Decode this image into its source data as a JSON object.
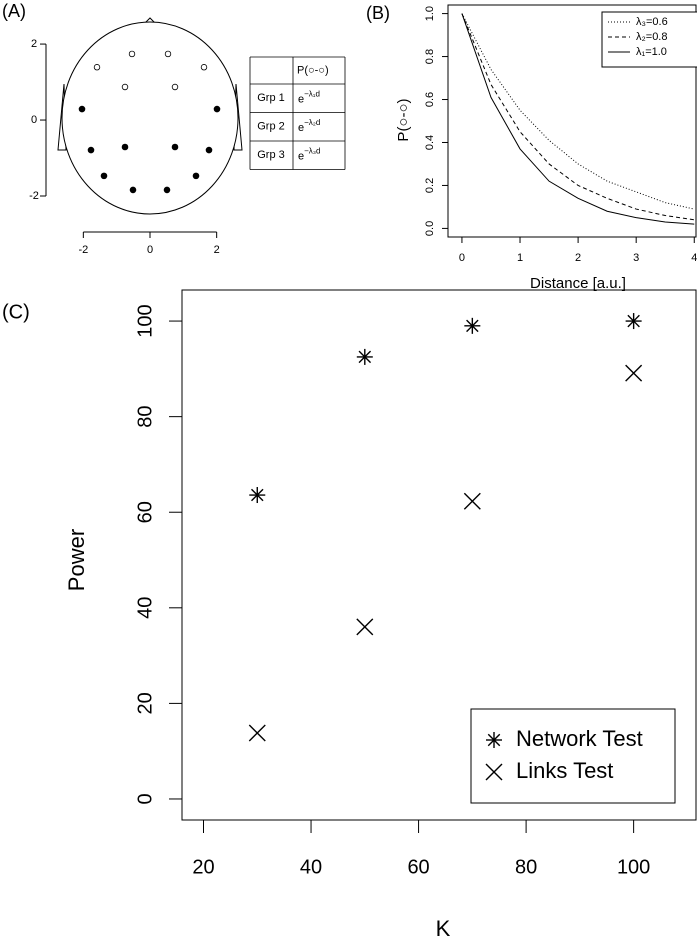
{
  "chart_data": [
    {
      "type": "scatter",
      "panel_label": "(A)",
      "xlim": [
        -3.12,
        3.0
      ],
      "ylim": [
        -3.0,
        3.16
      ],
      "xticks": [
        -2,
        0,
        2
      ],
      "yticks": [
        -2,
        0,
        2
      ],
      "series": [
        {
          "marker": "open",
          "x": [
            -1.59,
            -0.54,
            0.54,
            1.62,
            -0.75,
            0.75
          ],
          "values": [
            1.39,
            1.74,
            1.74,
            1.39,
            0.87,
            0.87
          ]
        },
        {
          "marker": "filled",
          "x": [
            -2.04,
            2.01,
            -1.77,
            -0.75,
            0.75,
            1.77,
            -1.38,
            1.38,
            -0.51,
            0.51
          ],
          "values": [
            0.29,
            0.29,
            -0.79,
            -0.71,
            -0.71,
            -0.79,
            -1.47,
            -1.47,
            -1.84,
            -1.84
          ]
        }
      ]
    },
    {
      "type": "line",
      "panel_label": "(B)",
      "xlabel": "Distance [a.u.]",
      "ylabel": "P(○-○)",
      "xlim": [
        -0.24,
        4.03
      ],
      "ylim": [
        -0.04,
        1.04
      ],
      "xticks": [
        0,
        1,
        2,
        3,
        4
      ],
      "yticks": [
        {
          "value": 0,
          "label": "0.0"
        },
        {
          "value": 0.2,
          "label": "0.2"
        },
        {
          "value": 0.4,
          "label": "0.4"
        },
        {
          "value": 0.6,
          "label": "0.6"
        },
        {
          "value": 0.8,
          "label": "0.8"
        },
        {
          "value": 1,
          "label": "1.0"
        }
      ],
      "legend": "top right",
      "x": [
        0,
        0.5,
        1,
        1.5,
        2,
        2.5,
        3,
        3.5,
        4
      ],
      "series": [
        {
          "name": "λ₃=0.6",
          "color": "#000000",
          "line_style": "dotted",
          "values": [
            1,
            0.74,
            0.55,
            0.41,
            0.3,
            0.22,
            0.17,
            0.12,
            0.09
          ]
        },
        {
          "name": "λ₂=0.8",
          "color": "#000000",
          "line_style": "dashed",
          "values": [
            1,
            0.67,
            0.45,
            0.3,
            0.2,
            0.14,
            0.09,
            0.06,
            0.04
          ]
        },
        {
          "name": "λ₁=1.0",
          "color": "#000000",
          "line_style": "solid",
          "values": [
            1,
            0.61,
            0.37,
            0.22,
            0.14,
            0.08,
            0.05,
            0.03,
            0.02
          ]
        }
      ]
    },
    {
      "type": "scatter",
      "panel_label": "(C)",
      "xlabel": "K",
      "ylabel": "Power",
      "xlim": [
        16,
        111.6
      ],
      "ylim": [
        -4.4,
        106.5
      ],
      "xticks": [
        20,
        40,
        60,
        80,
        100
      ],
      "yticks": [
        0,
        20,
        40,
        60,
        80,
        100
      ],
      "legend": "bottom right",
      "x": [
        30,
        50,
        70,
        100
      ],
      "series": [
        {
          "name": "Network Test",
          "marker": "asterisk",
          "color": "#000000",
          "values": [
            63.6,
            92.5,
            99,
            100
          ]
        },
        {
          "name": "Links Test",
          "marker": "cross",
          "color": "#000000",
          "values": [
            13.8,
            36,
            62.3,
            89.1
          ]
        }
      ]
    }
  ],
  "table": {
    "column_header": "P(○-○)",
    "rows": [
      {
        "group": "Grp 1",
        "formula": {
          "base": "e",
          "exponent": "−λ₁d"
        }
      },
      {
        "group": "Grp 2",
        "formula": {
          "base": "e",
          "exponent": "−λ₂d"
        }
      },
      {
        "group": "Grp 3",
        "formula": {
          "base": "e",
          "exponent": "−λ₃d"
        }
      }
    ]
  }
}
